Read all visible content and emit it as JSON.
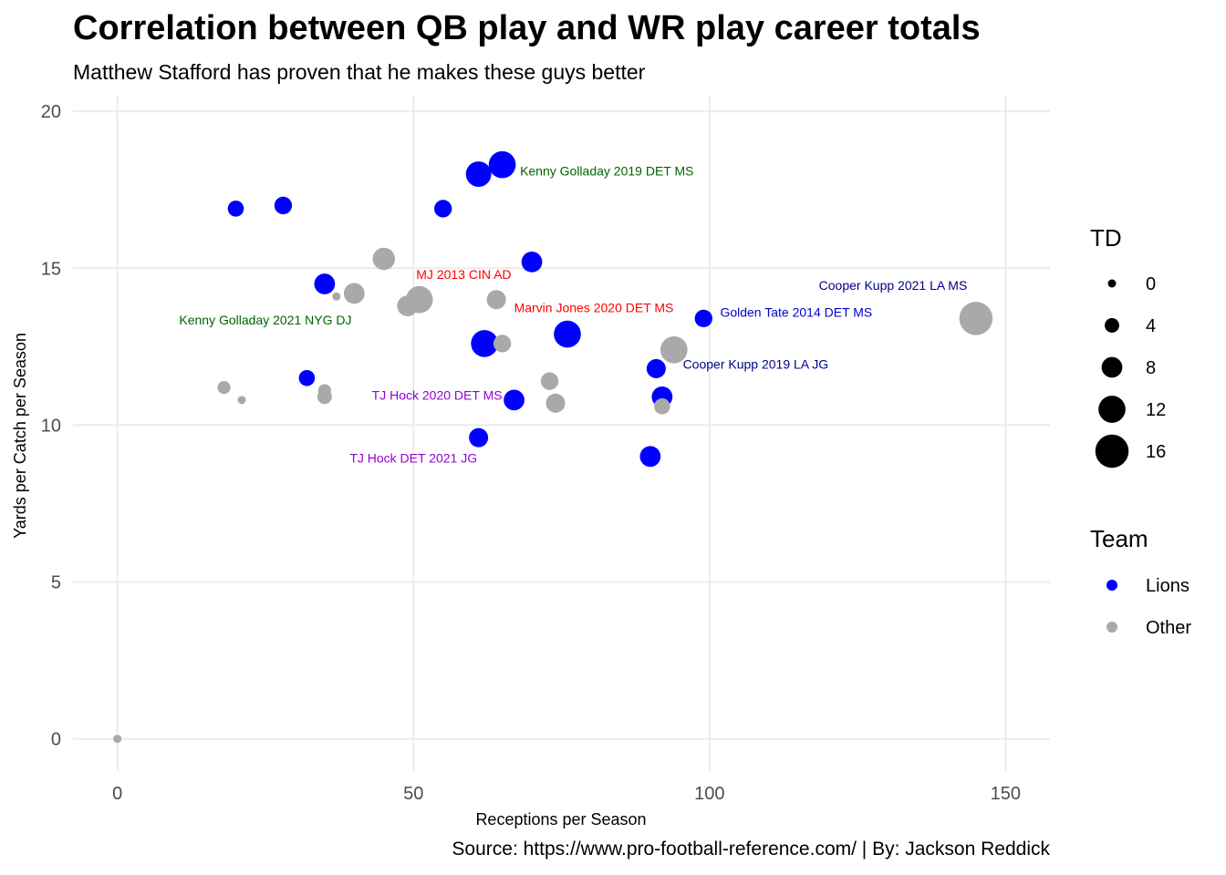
{
  "chart_data": {
    "type": "scatter",
    "title": "Correlation between QB play and WR play career totals",
    "subtitle": "Matthew Stafford has proven that he makes these guys better",
    "caption": "Source: https://www.pro-football-reference.com/ | By: Jackson Reddick",
    "xlabel": "Receptions per Season",
    "ylabel": "Yards per Catch per Season",
    "xlim": [
      -7.5,
      157.5
    ],
    "ylim": [
      -1,
      20.5
    ],
    "x_ticks": [
      0,
      50,
      100,
      150
    ],
    "y_ticks": [
      0,
      5,
      10,
      15,
      20
    ],
    "grid": true,
    "legend_position": "right",
    "size_legend": {
      "title": "TD",
      "values": [
        0,
        4,
        8,
        12,
        16
      ]
    },
    "color_legend": {
      "title": "Team",
      "entries": [
        {
          "label": "Lions",
          "color": "#0000ff"
        },
        {
          "label": "Other",
          "color": "#a9a9a9"
        }
      ]
    },
    "points": [
      {
        "x": 0,
        "y": 0,
        "td": 0,
        "team": "Other"
      },
      {
        "x": 18,
        "y": 11.2,
        "td": 3,
        "team": "Other"
      },
      {
        "x": 21,
        "y": 10.8,
        "td": 0,
        "team": "Other"
      },
      {
        "x": 20,
        "y": 16.9,
        "td": 5,
        "team": "Lions"
      },
      {
        "x": 28,
        "y": 17.0,
        "td": 6,
        "team": "Lions"
      },
      {
        "x": 32,
        "y": 11.5,
        "td": 5,
        "team": "Lions"
      },
      {
        "x": 35,
        "y": 14.5,
        "td": 8,
        "team": "Lions"
      },
      {
        "x": 35,
        "y": 11.1,
        "td": 3,
        "team": "Other"
      },
      {
        "x": 35,
        "y": 10.9,
        "td": 4,
        "team": "Other"
      },
      {
        "x": 37,
        "y": 14.1,
        "td": 0,
        "team": "Other"
      },
      {
        "x": 40,
        "y": 14.2,
        "td": 8,
        "team": "Other"
      },
      {
        "x": 45,
        "y": 15.3,
        "td": 9,
        "team": "Other"
      },
      {
        "x": 49,
        "y": 13.8,
        "td": 8,
        "team": "Other"
      },
      {
        "x": 51,
        "y": 14.0,
        "td": 12,
        "team": "Other"
      },
      {
        "x": 55,
        "y": 16.9,
        "td": 6,
        "team": "Lions"
      },
      {
        "x": 61,
        "y": 18.0,
        "td": 11,
        "team": "Lions"
      },
      {
        "x": 65,
        "y": 18.3,
        "td": 12,
        "team": "Lions"
      },
      {
        "x": 62,
        "y": 12.6,
        "td": 12,
        "team": "Lions"
      },
      {
        "x": 61,
        "y": 9.6,
        "td": 7,
        "team": "Lions"
      },
      {
        "x": 64,
        "y": 14.0,
        "td": 7,
        "team": "Other"
      },
      {
        "x": 65,
        "y": 12.6,
        "td": 6,
        "team": "Other"
      },
      {
        "x": 67,
        "y": 10.8,
        "td": 8,
        "team": "Lions"
      },
      {
        "x": 70,
        "y": 15.2,
        "td": 8,
        "team": "Lions"
      },
      {
        "x": 73,
        "y": 11.4,
        "td": 6,
        "team": "Other"
      },
      {
        "x": 74,
        "y": 10.7,
        "td": 7,
        "team": "Other"
      },
      {
        "x": 76,
        "y": 12.9,
        "td": 12,
        "team": "Lions"
      },
      {
        "x": 90,
        "y": 9.0,
        "td": 8,
        "team": "Lions"
      },
      {
        "x": 91,
        "y": 11.8,
        "td": 7,
        "team": "Lions"
      },
      {
        "x": 92,
        "y": 10.9,
        "td": 8,
        "team": "Lions"
      },
      {
        "x": 92,
        "y": 10.6,
        "td": 5,
        "team": "Other"
      },
      {
        "x": 94,
        "y": 12.4,
        "td": 12,
        "team": "Other"
      },
      {
        "x": 99,
        "y": 13.4,
        "td": 6,
        "team": "Lions"
      },
      {
        "x": 145,
        "y": 13.4,
        "td": 16,
        "team": "Other"
      }
    ],
    "annotations": [
      {
        "text": "Kenny Golladay 2019 DET MS",
        "x": 68,
        "y": 18.1,
        "anchor": "start",
        "color": "#006400"
      },
      {
        "text": "Kenny Golladay 2021 NYG DJ",
        "x": 25,
        "y": 13.35,
        "anchor": "middle",
        "color": "#006400"
      },
      {
        "text": "MJ 2013 CIN AD",
        "x": 58.5,
        "y": 14.8,
        "anchor": "middle",
        "color": "#ff0000"
      },
      {
        "text": "Marvin Jones 2020 DET MS",
        "x": 67,
        "y": 13.75,
        "anchor": "start",
        "color": "#ff0000"
      },
      {
        "text": "Golden Tate 2014 DET MS",
        "x": 101.8,
        "y": 13.6,
        "anchor": "start",
        "color": "#0000cd"
      },
      {
        "text": "Cooper Kupp 2021 LA MS",
        "x": 131,
        "y": 14.45,
        "anchor": "middle",
        "color": "#00008b"
      },
      {
        "text": "Cooper Kupp 2019 LA JG",
        "x": 95.5,
        "y": 11.95,
        "anchor": "start",
        "color": "#00008b"
      },
      {
        "text": "TJ Hock 2020 DET MS",
        "x": 65,
        "y": 10.95,
        "anchor": "end",
        "color": "#9400d3"
      },
      {
        "text": "TJ Hock DET 2021 JG",
        "x": 50,
        "y": 8.95,
        "anchor": "middle",
        "color": "#9400d3"
      }
    ]
  }
}
